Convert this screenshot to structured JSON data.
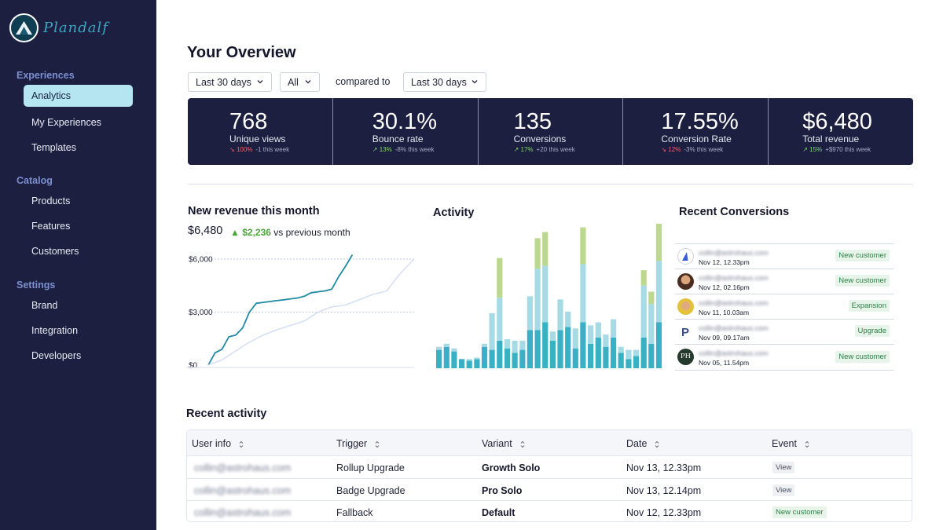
{
  "app": {
    "name": "Plandalf",
    "colors": {
      "sidebar": "#1c1f3f",
      "accent": "#b6e5f2",
      "line": "#1f8aa3",
      "bar_dark": "#3ab0c4",
      "bar_light": "#a6dbe6",
      "bar_green": "#bcd88e"
    }
  },
  "sidebar": {
    "sections": [
      {
        "title": "Experiences",
        "items": [
          {
            "label": "Analytics",
            "active": true
          },
          {
            "label": "My Experiences"
          },
          {
            "label": "Templates"
          }
        ]
      },
      {
        "title": "Catalog",
        "items": [
          {
            "label": "Products"
          },
          {
            "label": "Features"
          },
          {
            "label": "Customers"
          }
        ]
      },
      {
        "title": "Settings",
        "items": [
          {
            "label": "Brand"
          },
          {
            "label": "Integration"
          },
          {
            "label": "Developers"
          }
        ]
      }
    ]
  },
  "header": {
    "title": "Your Overview",
    "filters": {
      "range": "Last 30 days",
      "scope": "All",
      "compared_label": "compared to",
      "compare_range": "Last 30 days"
    }
  },
  "stats": [
    {
      "value": "768",
      "label": "Unique views",
      "delta": "100%",
      "direction": "down",
      "week": "-1 this week"
    },
    {
      "value": "30.1%",
      "label": "Bounce rate",
      "delta": "13%",
      "direction": "up",
      "week": "-8% this week"
    },
    {
      "value": "135",
      "label": "Conversions",
      "delta": "17%",
      "direction": "up",
      "week": "+20 this week"
    },
    {
      "value": "17.55%",
      "label": "Conversion Rate",
      "delta": "12%",
      "direction": "down",
      "week": "-3% this week"
    },
    {
      "value": "$6,480",
      "label": "Total revenue",
      "delta": "15%",
      "direction": "up",
      "week": "+$970 this week"
    }
  ],
  "revenue": {
    "title": "New revenue this month",
    "amount": "$6,480",
    "delta": "$2,236",
    "delta_suffix": "vs previous month"
  },
  "activity": {
    "title": "Activity"
  },
  "recent_conversions": {
    "title": "Recent Conversions",
    "items": [
      {
        "email": "collin@astrohaus.com",
        "date": "Nov 12, 12.33pm",
        "badge": "New customer",
        "avatar": "a-logo"
      },
      {
        "email": "collin@astrohaus.com",
        "date": "Nov 12, 02.16pm",
        "badge": "New customer",
        "avatar": "photo"
      },
      {
        "email": "collin@astrohaus.com",
        "date": "Nov 11, 10.03am",
        "badge": "Expansion",
        "avatar": "photo"
      },
      {
        "email": "collin@astrohaus.com",
        "date": "Nov 09, 09.17am",
        "badge": "Upgrade",
        "avatar": "p-logo"
      },
      {
        "email": "collin@astrohaus.com",
        "date": "Nov 05, 11.54pm",
        "badge": "New customer",
        "avatar": "PH"
      }
    ]
  },
  "recent_activity": {
    "title": "Recent activity",
    "columns": [
      "User info",
      "Trigger",
      "Variant",
      "Date",
      "Event"
    ],
    "rows": [
      {
        "user": "collin@astrohaus.com",
        "trigger": "Rollup Upgrade",
        "variant": "Growth Solo",
        "date": "Nov 13, 12.33pm",
        "event": "View"
      },
      {
        "user": "collin@astrohaus.com",
        "trigger": "Badge Upgrade",
        "variant": "Pro Solo",
        "date": "Nov 13, 12.14pm",
        "event": "View"
      },
      {
        "user": "collin@astrohaus.com",
        "trigger": "Fallback",
        "variant": "Default",
        "date": "Nov 12, 12.33pm",
        "event": "New customer"
      }
    ]
  },
  "chart_data": [
    {
      "type": "line",
      "title": "New revenue this month",
      "y_ticks": [
        "$0",
        "$3,000",
        "$6,000"
      ],
      "ylim": [
        0,
        6000
      ],
      "series": [
        {
          "name": "This month",
          "x": [
            0,
            1,
            2,
            3,
            4,
            5,
            6,
            7,
            8,
            9,
            10,
            11,
            12,
            13,
            14,
            15,
            16,
            17,
            18,
            19,
            20,
            21
          ],
          "values": [
            0,
            700,
            900,
            1600,
            1700,
            2100,
            3000,
            3500,
            3550,
            3600,
            3650,
            3700,
            3750,
            3800,
            3900,
            4100,
            4150,
            4200,
            4300,
            5000,
            5600,
            6250
          ]
        },
        {
          "name": "Previous month",
          "x": [
            0,
            2,
            4,
            6,
            8,
            10,
            12,
            14,
            16,
            18,
            20,
            22,
            24,
            26,
            28,
            30
          ],
          "values": [
            0,
            300,
            800,
            1300,
            1700,
            2000,
            2250,
            2500,
            3000,
            3300,
            3400,
            3700,
            4000,
            4200,
            5200,
            6000
          ]
        }
      ]
    },
    {
      "type": "bar",
      "title": "Activity",
      "stacked": true,
      "series_names": [
        "dark",
        "light",
        "green"
      ],
      "bars": [
        [
          12,
          2,
          0
        ],
        [
          14,
          2,
          0
        ],
        [
          11,
          2,
          0
        ],
        [
          6,
          0,
          0
        ],
        [
          5,
          1,
          0
        ],
        [
          6,
          1,
          0
        ],
        [
          14,
          2,
          0
        ],
        [
          12,
          24,
          0
        ],
        [
          18,
          28,
          26
        ],
        [
          13,
          6,
          0
        ],
        [
          10,
          8,
          0
        ],
        [
          12,
          6,
          0
        ],
        [
          25,
          22,
          0
        ],
        [
          25,
          40,
          20
        ],
        [
          30,
          37,
          22
        ],
        [
          18,
          6,
          0
        ],
        [
          25,
          20,
          0
        ],
        [
          27,
          10,
          0
        ],
        [
          13,
          13,
          0
        ],
        [
          30,
          38,
          24
        ],
        [
          16,
          12,
          0
        ],
        [
          20,
          10,
          0
        ],
        [
          14,
          8,
          0
        ],
        [
          20,
          12,
          0
        ],
        [
          10,
          4,
          0
        ],
        [
          6,
          6,
          0
        ],
        [
          8,
          4,
          0
        ],
        [
          20,
          34,
          10
        ],
        [
          16,
          26,
          8
        ],
        [
          30,
          40,
          30
        ]
      ]
    }
  ]
}
